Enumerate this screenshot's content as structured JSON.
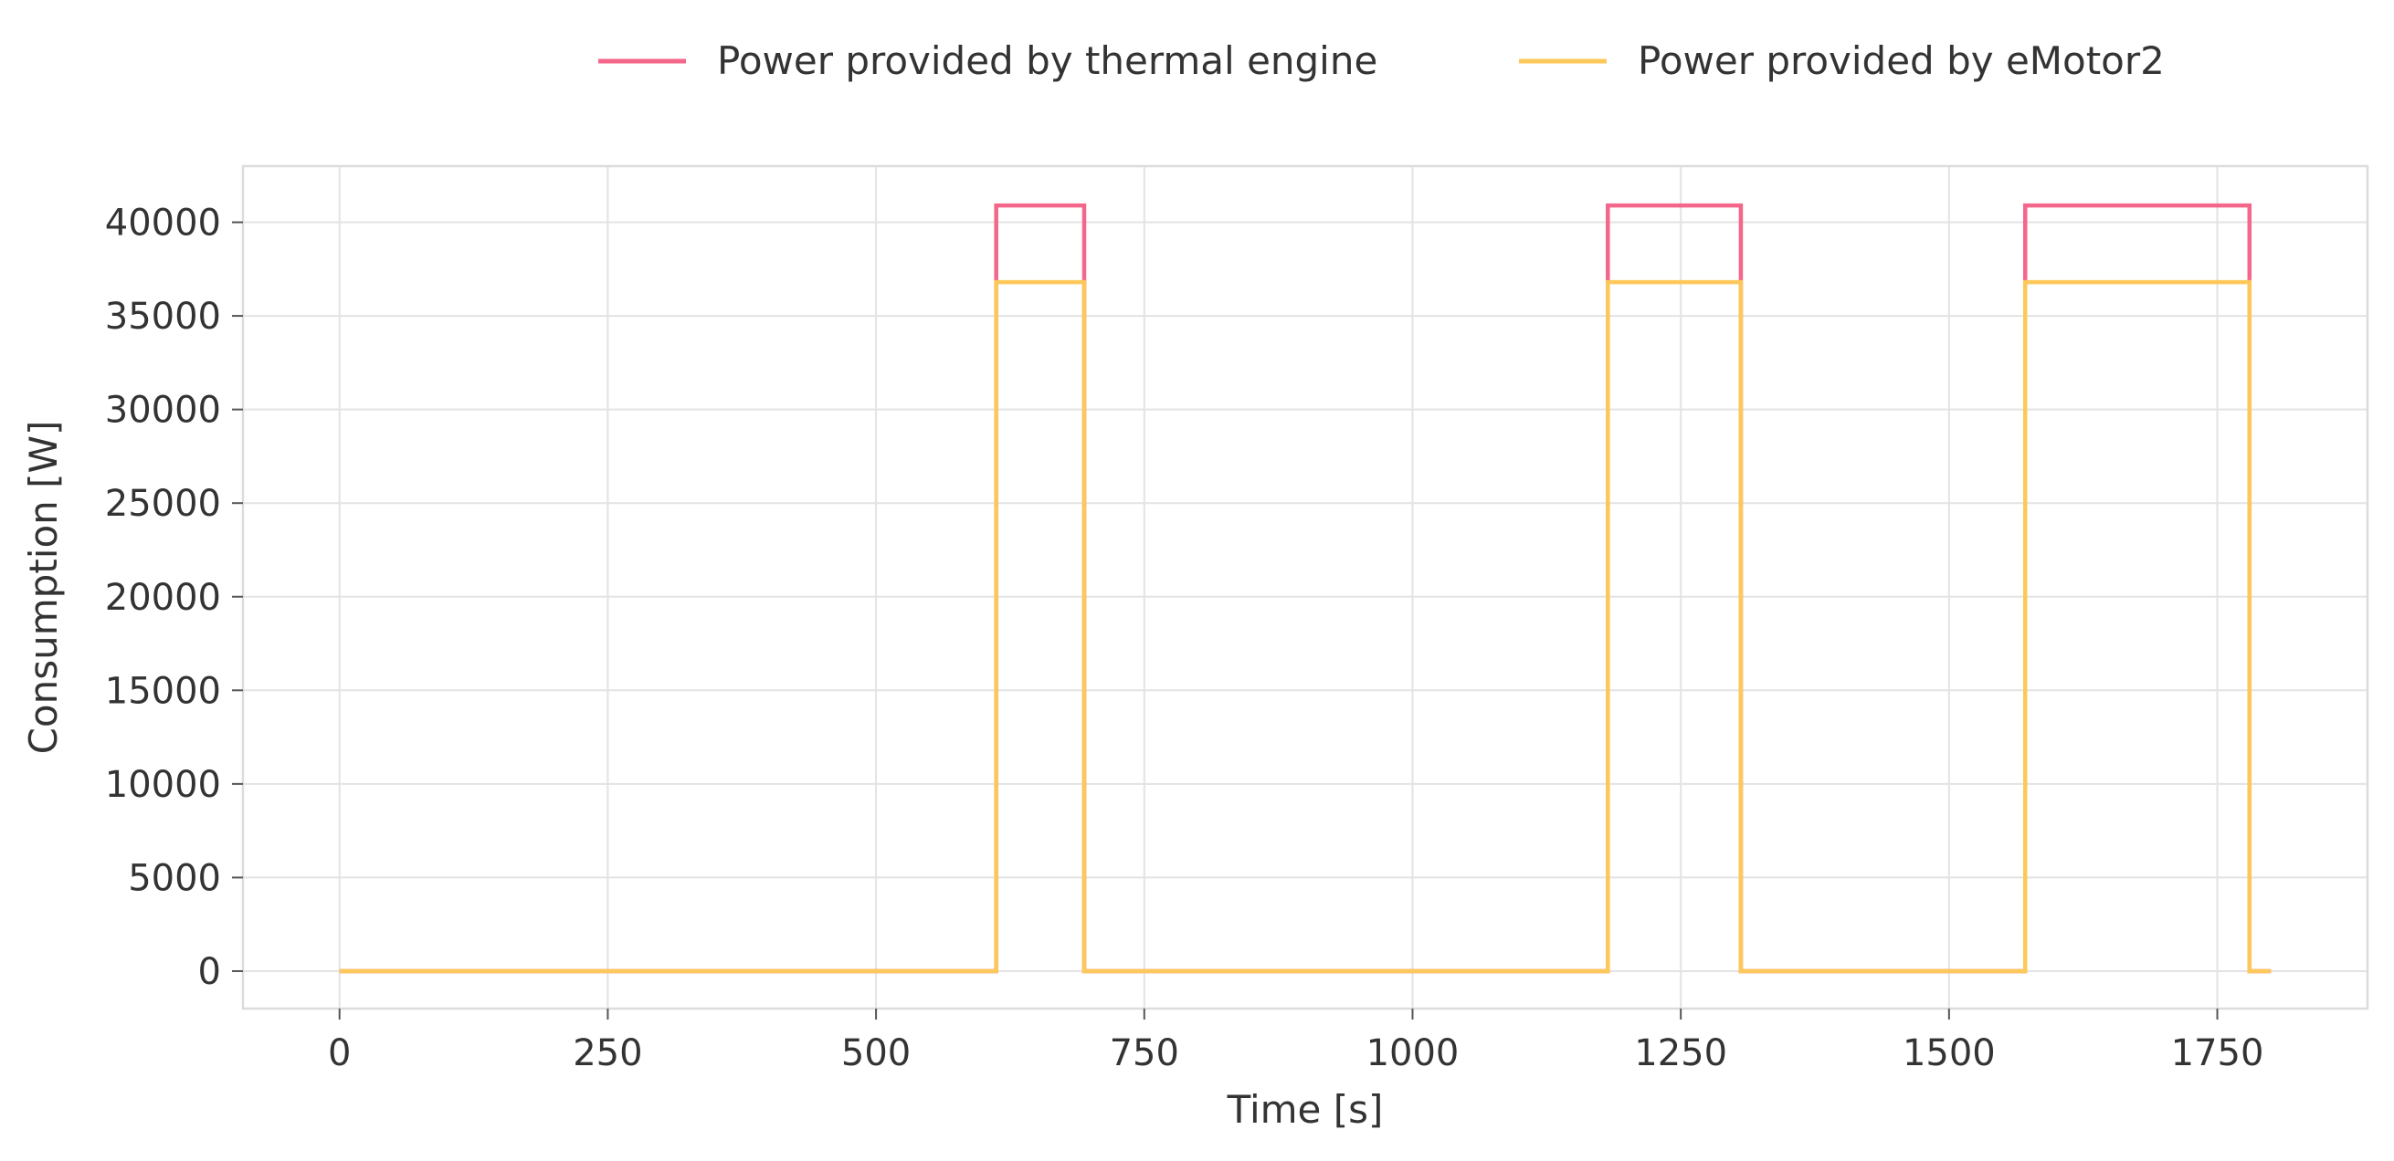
{
  "chart_data": {
    "type": "line",
    "title": "",
    "xlabel": "Time [s]",
    "ylabel": "Consumption [W]",
    "xlim": [
      -90,
      1890
    ],
    "ylim": [
      -2000,
      43000
    ],
    "xticks": [
      0,
      250,
      500,
      750,
      1000,
      1250,
      1500,
      1750
    ],
    "yticks": [
      0,
      5000,
      10000,
      15000,
      20000,
      25000,
      30000,
      35000,
      40000
    ],
    "grid": true,
    "legend_position": "top-center",
    "series": [
      {
        "name": "Power provided by thermal engine",
        "color": "#f4668a",
        "step": "post",
        "x": [
          0,
          612,
          694,
          1182,
          1306,
          1571,
          1780,
          1800
        ],
        "y": [
          0,
          40900,
          0,
          40900,
          0,
          40900,
          0,
          0
        ]
      },
      {
        "name": "Power provided by eMotor2",
        "color": "#fdc85a",
        "step": "post",
        "x": [
          0,
          612,
          694,
          1182,
          1306,
          1571,
          1780,
          1800
        ],
        "y": [
          0,
          36800,
          0,
          36800,
          0,
          36800,
          0,
          0
        ]
      }
    ]
  }
}
